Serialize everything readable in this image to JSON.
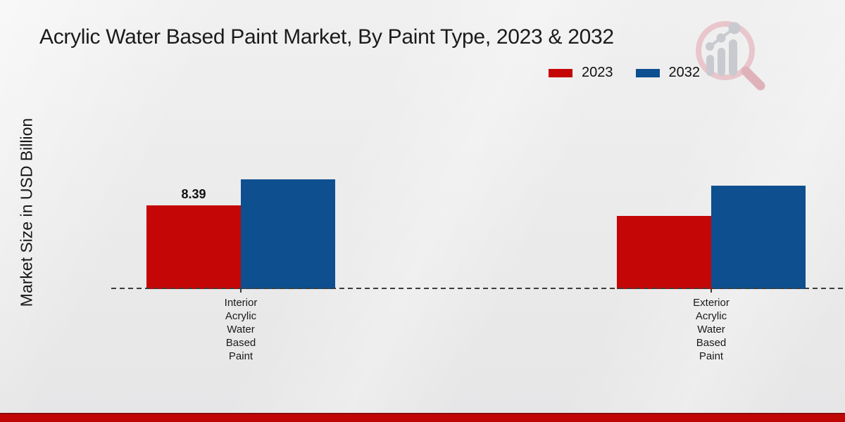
{
  "title": "Acrylic Water Based Paint Market, By Paint Type, 2023 & 2032",
  "y_axis_label": "Market Size in USD Billion",
  "legend": {
    "items": [
      {
        "label": "2023",
        "color": "#c40606"
      },
      {
        "label": "2032",
        "color": "#0d4f8f"
      }
    ]
  },
  "watermark": {
    "icon": "magnifier-bar-chart-logo",
    "ring_color": "#e8c6cc",
    "bars_color": "#c9cacf",
    "handle_color": "#dfb2ba"
  },
  "footer": {
    "band_color": "#c00505"
  },
  "chart_data": {
    "type": "bar",
    "title": "Acrylic Water Based Paint Market, By Paint Type, 2023 & 2032",
    "xlabel": "",
    "ylabel": "Market Size in USD Billion",
    "categories": [
      "Interior Acrylic Water Based Paint",
      "Exterior Acrylic Water Based Paint"
    ],
    "series": [
      {
        "name": "2023",
        "color": "#c40606",
        "values": [
          8.39,
          7.3
        ],
        "data_labels": [
          "8.39",
          null
        ]
      },
      {
        "name": "2032",
        "color": "#0d4f8f",
        "values": [
          11.0,
          10.4
        ],
        "data_labels": [
          null,
          null
        ]
      }
    ],
    "ylim": [
      0,
      13
    ],
    "grid": false,
    "legend_position": "top-right",
    "baseline_style": "dashed"
  }
}
